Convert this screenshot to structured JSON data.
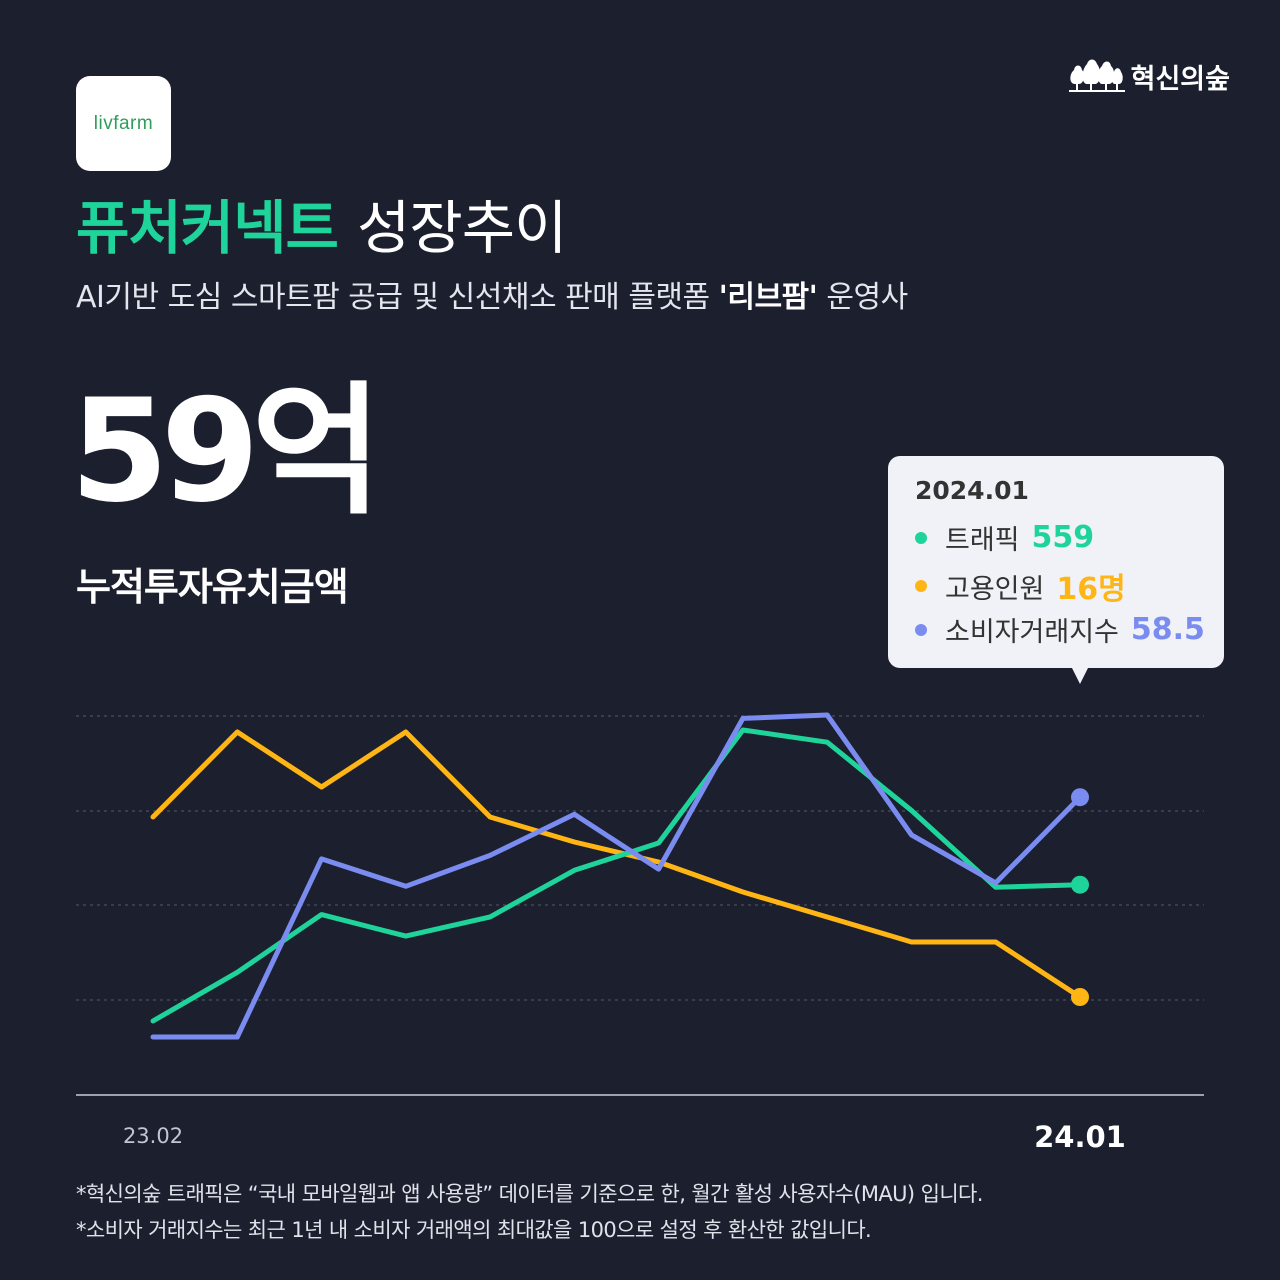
{
  "logo": {
    "text": "livfarm"
  },
  "brand": {
    "name": "혁신의숲"
  },
  "title": {
    "highlight": "퓨처커넥트",
    "rest": "성장추이"
  },
  "subtitle": {
    "before": "AI기반 도심 스마트팜 공급 및 신선채소 판매 플랫폼 ",
    "bold": "'리브팜'",
    "after": " 운영사"
  },
  "headline": {
    "value": "59억",
    "label": "누적투자유치금액"
  },
  "tooltip": {
    "date": "2024.01",
    "rows": [
      {
        "label": "트래픽",
        "value": "559",
        "color": "#1fd49b"
      },
      {
        "label": "고용인원",
        "value": "16명",
        "color": "#ffb514"
      },
      {
        "label": "소비자거래지수",
        "value": "58.5",
        "color": "#7b8cf0"
      }
    ]
  },
  "chart_data": {
    "type": "line",
    "x": [
      "23.02",
      "23.03",
      "23.04",
      "23.05",
      "23.06",
      "23.07",
      "23.08",
      "23.09",
      "23.10",
      "23.11",
      "23.12",
      "24.01"
    ],
    "x_tick_labels": {
      "first": "23.02",
      "last": "24.01"
    },
    "grid": true,
    "series": [
      {
        "name": "트래픽",
        "color": "#1fd49b",
        "values": [
          190,
          322,
          478,
          420,
          472,
          598,
          672,
          978,
          945,
          760,
          552,
          559
        ]
      },
      {
        "name": "고용인원",
        "color": "#ffb514",
        "values": [
          19.6,
          21.3,
          20.2,
          21.3,
          19.6,
          19.1,
          18.7,
          18.1,
          17.6,
          17.1,
          17.1,
          16
        ]
      },
      {
        "name": "소비자거래지수",
        "color": "#7b8cf0",
        "values": [
          23.5,
          23.5,
          49.5,
          45.5,
          50,
          56,
          48,
          70,
          70.5,
          53,
          46,
          58.5
        ]
      }
    ]
  },
  "footnotes": [
    "*혁신의숲 트래픽은 “국내 모바일웹과 앱 사용량” 데이터를 기준으로 한, 월간 활성 사용자수(MAU) 입니다.",
    "*소비자 거래지수는 최근 1년 내 소비자 거래액의 최대값을 100으로 설정 후 환산한 값입니다."
  ]
}
